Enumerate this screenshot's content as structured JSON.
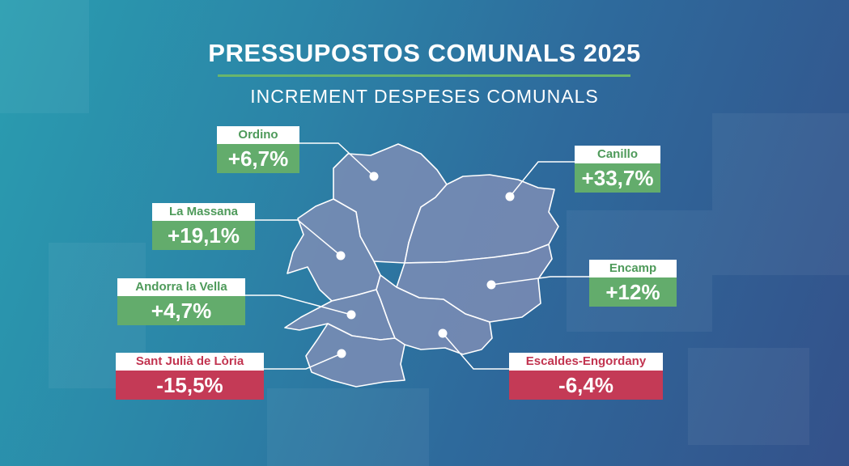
{
  "title": "PRESSUPOSTOS COMUNALS 2025",
  "subtitle": "INCREMENT DESPESES COMUNALS",
  "colors": {
    "increase": "#63ac6c",
    "decrease": "#c43a56",
    "divider": "#6ab66b"
  },
  "parishes": [
    {
      "name": "Ordino",
      "change": "+6,7%",
      "value": 6.7
    },
    {
      "name": "Canillo",
      "change": "+33,7%",
      "value": 33.7
    },
    {
      "name": "La Massana",
      "change": "+19,1%",
      "value": 19.1
    },
    {
      "name": "Encamp",
      "change": "+12%",
      "value": 12
    },
    {
      "name": "Andorra la Vella",
      "change": "+4,7%",
      "value": 4.7
    },
    {
      "name": "Sant Julià de Lòria",
      "change": "-15,5%",
      "value": -15.5
    },
    {
      "name": "Escaldes-Engordany",
      "change": "-6,4%",
      "value": -6.4
    }
  ]
}
